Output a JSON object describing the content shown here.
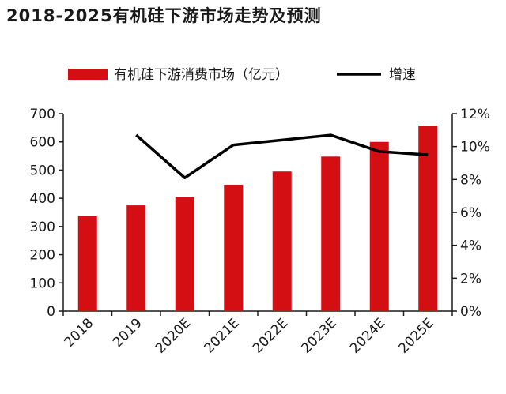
{
  "chart_data": {
    "type": "bar",
    "title": "2018-2025有机硅下游市场走势及预测",
    "categories": [
      "2018",
      "2019",
      "2020E",
      "2021E",
      "2022E",
      "2023E",
      "2024E",
      "2025E"
    ],
    "series": [
      {
        "name": "有机硅下游消费市场（亿元）",
        "type": "bar",
        "axis": "left",
        "values": [
          338,
          375,
          405,
          448,
          495,
          548,
          600,
          658
        ]
      },
      {
        "name": "增速",
        "type": "line",
        "axis": "right",
        "values": [
          null,
          10.7,
          8.1,
          10.1,
          10.4,
          10.7,
          9.7,
          9.5
        ]
      }
    ],
    "ylim_left": [
      0,
      700
    ],
    "yticks_left": [
      "0",
      "100",
      "200",
      "300",
      "400",
      "500",
      "600",
      "700"
    ],
    "ylim_right": [
      0,
      12
    ],
    "yticks_right": [
      "0%",
      "2%",
      "4%",
      "6%",
      "8%",
      "10%",
      "12%"
    ],
    "xlabel": "",
    "ylabel": "",
    "legend_position": "top",
    "colors": {
      "bar": "#d40f14",
      "line": "#000000",
      "axis": "#1a1a1a"
    }
  }
}
